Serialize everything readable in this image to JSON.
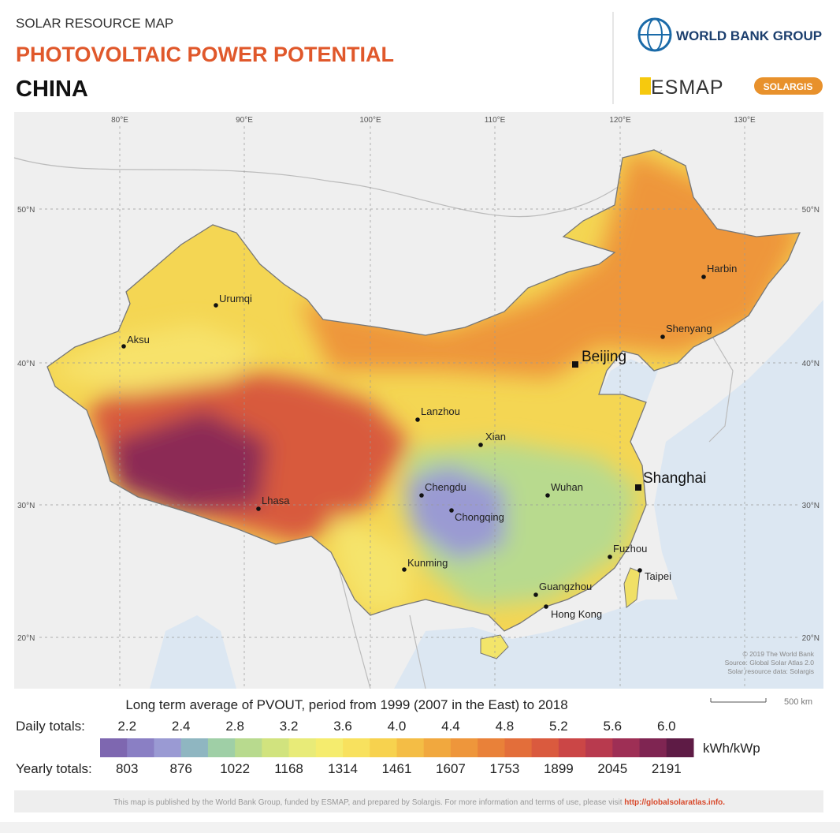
{
  "header": {
    "kicker": "SOLAR RESOURCE MAP",
    "title": "PHOTOVOLTAIC POWER POTENTIAL",
    "country": "CHINA",
    "logos": [
      "WORLD BANK GROUP",
      "ESMAP",
      "SOLARGIS"
    ]
  },
  "map": {
    "longitude_labels": [
      "80°E",
      "90°E",
      "100°E",
      "110°E",
      "120°E",
      "130°E"
    ],
    "latitude_labels": [
      "50°N",
      "40°N",
      "30°N",
      "20°N"
    ],
    "cities": [
      "Urumqi",
      "Aksu",
      "Harbin",
      "Shenyang",
      "Beijing",
      "Lanzhou",
      "Xian",
      "Shanghai",
      "Chengdu",
      "Chongqing",
      "Wuhan",
      "Lhasa",
      "Fuzhou",
      "Kunming",
      "Taipei",
      "Guangzhou",
      "Hong Kong"
    ],
    "credits": [
      "© 2019 The World Bank",
      "Source: Global Solar Atlas 2.0",
      "Solar resource data: Solargis"
    ],
    "scale_bar": "500 km"
  },
  "legend": {
    "title": "Long term average of PVOUT, period from 1999 (2007 in the East) to 2018",
    "daily_label": "Daily totals:",
    "daily_values": [
      "2.2",
      "2.4",
      "2.8",
      "3.2",
      "3.6",
      "4.0",
      "4.4",
      "4.8",
      "5.2",
      "5.6",
      "6.0"
    ],
    "yearly_label": "Yearly totals:",
    "yearly_values": [
      "803",
      "876",
      "1022",
      "1168",
      "1314",
      "1461",
      "1607",
      "1753",
      "1899",
      "2045",
      "2191"
    ],
    "unit": "kWh/kWp",
    "colors": [
      "#7e67b0",
      "#8a7fc4",
      "#9a9ad3",
      "#8fb6c1",
      "#9fcfa6",
      "#b8da8e",
      "#d1e37e",
      "#e8eb78",
      "#f5ec6e",
      "#f8e15e",
      "#f7d24e",
      "#f4bd45",
      "#f1a83e",
      "#ee963b",
      "#e98139",
      "#e36e3a",
      "#da5a3e",
      "#cb4646",
      "#b83a4e",
      "#9e2f55",
      "#7f2552",
      "#5e1b45"
    ]
  },
  "footer": {
    "text": "This map is published by the World Bank Group, funded by ESMAP, and prepared by Solargis. For more information and terms of use, please visit ",
    "link": "http://globalsolaratlas.info."
  }
}
